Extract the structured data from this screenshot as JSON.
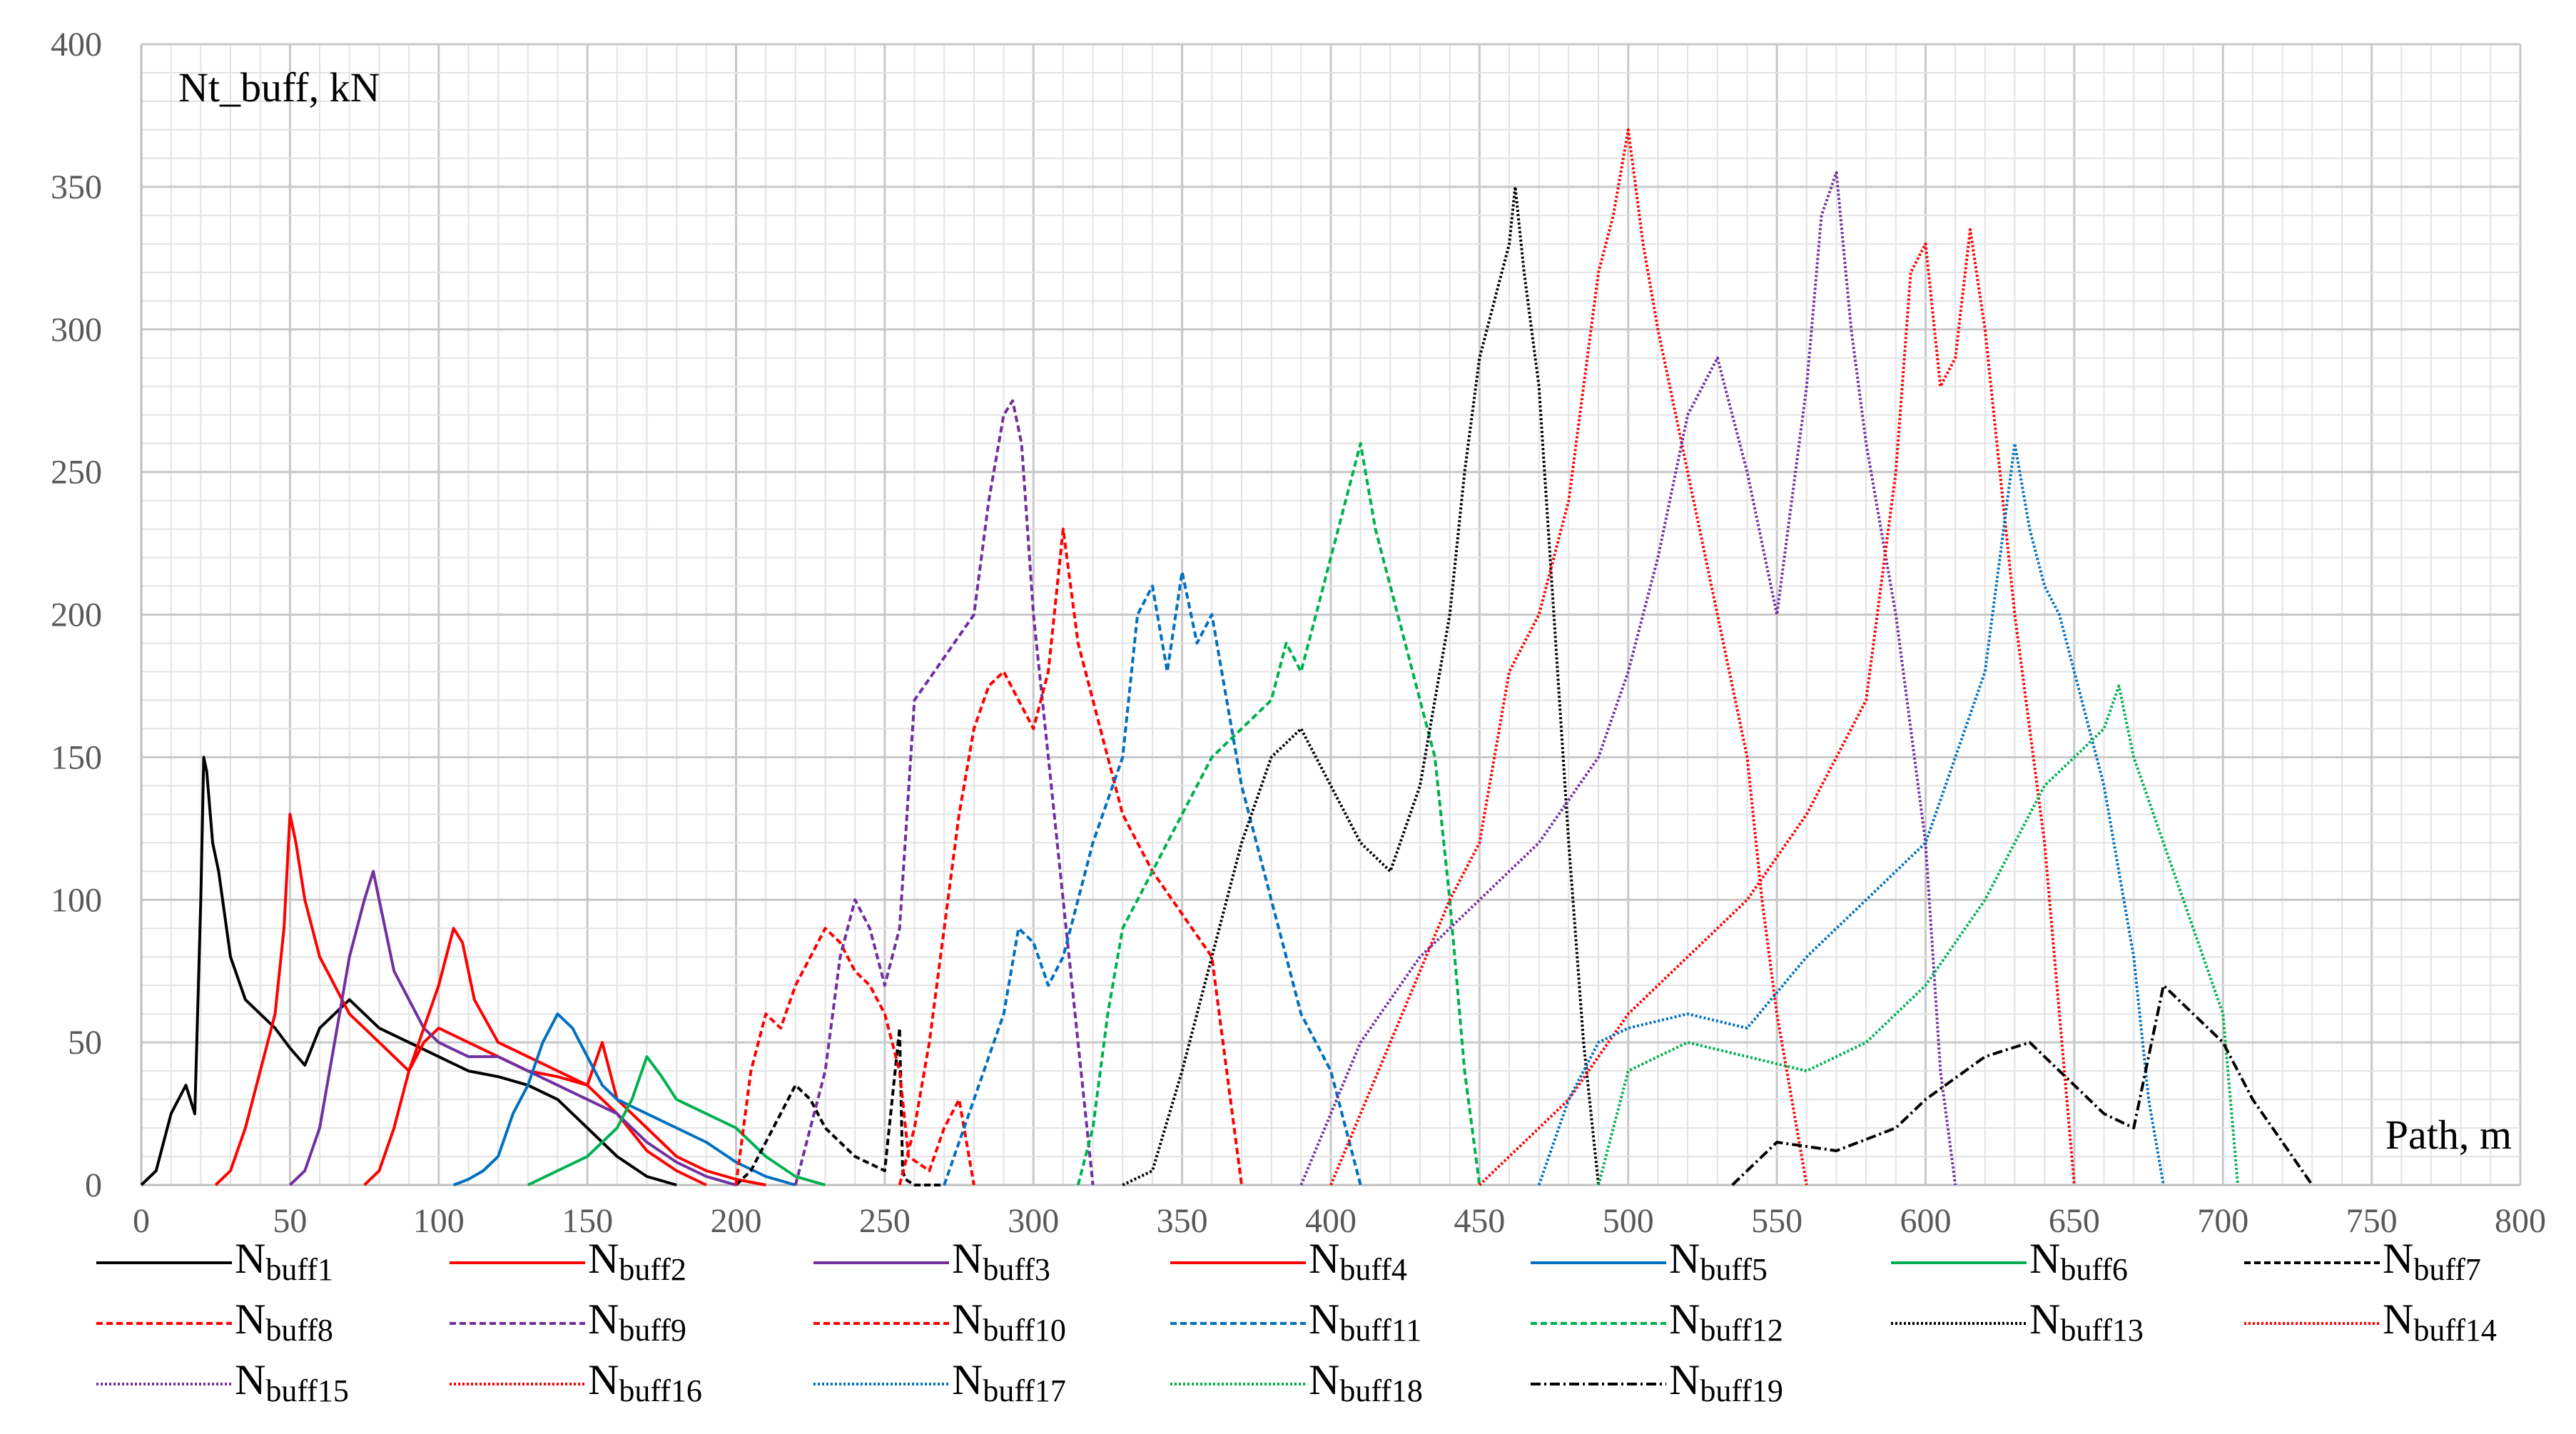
{
  "chart_data": {
    "type": "line",
    "ylabel": "Nt_buff, kN",
    "xlabel": "Path, m",
    "xlim": [
      0,
      800
    ],
    "ylim": [
      0,
      400
    ],
    "x_ticks": [
      0,
      50,
      100,
      150,
      200,
      250,
      300,
      350,
      400,
      450,
      500,
      550,
      600,
      650,
      700,
      750,
      800
    ],
    "y_ticks": [
      0,
      50,
      100,
      150,
      200,
      250,
      300,
      350,
      400
    ],
    "grid": true,
    "legend_position": "bottom",
    "series": [
      {
        "name": "Nbuff1",
        "base": "N",
        "sub": "buff1",
        "color": "#000000",
        "dash": "solid",
        "x": [
          0,
          5,
          10,
          15,
          18,
          20,
          21,
          22,
          24,
          26,
          28,
          30,
          35,
          40,
          45,
          50,
          55,
          60,
          70,
          80,
          90,
          100,
          110,
          120,
          130,
          140,
          150,
          160,
          170,
          180
        ],
        "y": [
          0,
          5,
          25,
          35,
          25,
          100,
          150,
          145,
          120,
          110,
          95,
          80,
          65,
          60,
          55,
          48,
          42,
          55,
          65,
          55,
          50,
          45,
          40,
          38,
          35,
          30,
          20,
          10,
          3,
          0
        ]
      },
      {
        "name": "Nbuff2",
        "base": "N",
        "sub": "buff2",
        "color": "#FF0000",
        "dash": "solid",
        "x": [
          25,
          30,
          35,
          40,
          45,
          48,
          50,
          52,
          55,
          60,
          65,
          70,
          75,
          80,
          85,
          90,
          95,
          100,
          110,
          120,
          130,
          140,
          150,
          160,
          170,
          180,
          190
        ],
        "y": [
          0,
          5,
          20,
          40,
          60,
          90,
          130,
          120,
          100,
          80,
          70,
          60,
          55,
          50,
          45,
          40,
          50,
          55,
          50,
          45,
          40,
          38,
          35,
          25,
          12,
          5,
          0
        ]
      },
      {
        "name": "Nbuff3",
        "base": "N",
        "sub": "buff3",
        "color": "#7030A0",
        "dash": "solid",
        "x": [
          50,
          55,
          60,
          65,
          70,
          75,
          78,
          80,
          85,
          90,
          95,
          100,
          110,
          120,
          130,
          140,
          150,
          160,
          170,
          180,
          190,
          200
        ],
        "y": [
          0,
          5,
          20,
          50,
          80,
          100,
          110,
          100,
          75,
          65,
          55,
          50,
          45,
          45,
          40,
          35,
          30,
          25,
          15,
          8,
          3,
          0
        ]
      },
      {
        "name": "Nbuff4",
        "base": "N",
        "sub": "buff4",
        "color": "#FF0000",
        "dash": "solid",
        "x": [
          75,
          80,
          85,
          90,
          95,
          100,
          105,
          108,
          112,
          120,
          130,
          140,
          150,
          155,
          160,
          170,
          180,
          190,
          200,
          210
        ],
        "y": [
          0,
          5,
          20,
          40,
          55,
          70,
          90,
          85,
          65,
          50,
          45,
          40,
          35,
          50,
          30,
          20,
          10,
          5,
          2,
          0
        ]
      },
      {
        "name": "Nbuff5",
        "base": "N",
        "sub": "buff5",
        "color": "#0070C0",
        "dash": "solid",
        "x": [
          105,
          110,
          115,
          120,
          125,
          130,
          135,
          140,
          145,
          150,
          155,
          160,
          170,
          180,
          190,
          200,
          210,
          220
        ],
        "y": [
          0,
          2,
          5,
          10,
          25,
          35,
          50,
          60,
          55,
          45,
          35,
          30,
          25,
          20,
          15,
          8,
          3,
          0
        ]
      },
      {
        "name": "Nbuff6",
        "base": "N",
        "sub": "buff6",
        "color": "#00B050",
        "dash": "solid",
        "x": [
          130,
          140,
          150,
          160,
          165,
          170,
          175,
          180,
          190,
          200,
          210,
          220,
          230
        ],
        "y": [
          0,
          5,
          10,
          20,
          30,
          45,
          38,
          30,
          25,
          20,
          10,
          3,
          0
        ]
      },
      {
        "name": "Nbuff7",
        "base": "N",
        "sub": "buff7",
        "color": "#000000",
        "dash": "9,5",
        "x": [
          200,
          205,
          210,
          215,
          220,
          225,
          230,
          240,
          250,
          255,
          256,
          257,
          260,
          270
        ],
        "y": [
          0,
          5,
          15,
          25,
          35,
          30,
          20,
          10,
          5,
          55,
          5,
          2,
          0,
          0
        ]
      },
      {
        "name": "Nbuff8",
        "base": "N",
        "sub": "buff8",
        "color": "#FF0000",
        "dash": "9,5",
        "x": [
          200,
          205,
          210,
          215,
          220,
          225,
          230,
          235,
          240,
          245,
          250,
          255,
          258,
          265,
          270,
          275,
          280
        ],
        "y": [
          0,
          40,
          60,
          55,
          70,
          80,
          90,
          85,
          75,
          70,
          60,
          40,
          10,
          5,
          20,
          30,
          0
        ]
      },
      {
        "name": "Nbuff9",
        "base": "N",
        "sub": "buff9",
        "color": "#7030A0",
        "dash": "9,5",
        "x": [
          220,
          230,
          235,
          240,
          245,
          250,
          255,
          260,
          270,
          280,
          285,
          290,
          293,
          296,
          300,
          310,
          320
        ],
        "y": [
          0,
          40,
          80,
          100,
          90,
          70,
          90,
          170,
          185,
          200,
          240,
          270,
          275,
          260,
          200,
          100,
          0
        ]
      },
      {
        "name": "Nbuff10",
        "base": "N",
        "sub": "buff10",
        "color": "#FF0000",
        "dash": "9,5",
        "x": [
          255,
          260,
          265,
          270,
          275,
          280,
          285,
          290,
          295,
          300,
          305,
          310,
          315,
          320,
          325,
          330,
          340,
          350,
          360,
          365,
          370
        ],
        "y": [
          0,
          20,
          50,
          90,
          130,
          160,
          175,
          180,
          170,
          160,
          180,
          230,
          190,
          170,
          150,
          130,
          110,
          95,
          80,
          40,
          0
        ]
      },
      {
        "name": "Nbuff11",
        "base": "N",
        "sub": "buff11",
        "color": "#0070C0",
        "dash": "9,5",
        "x": [
          270,
          280,
          290,
          295,
          300,
          305,
          310,
          320,
          330,
          335,
          340,
          345,
          350,
          355,
          360,
          365,
          370,
          375,
          380,
          385,
          390,
          395,
          400,
          405,
          410
        ],
        "y": [
          0,
          30,
          60,
          90,
          85,
          70,
          80,
          120,
          150,
          200,
          210,
          180,
          215,
          190,
          200,
          170,
          140,
          120,
          100,
          80,
          60,
          50,
          40,
          20,
          0
        ]
      },
      {
        "name": "Nbuff12",
        "base": "N",
        "sub": "buff12",
        "color": "#00B050",
        "dash": "9,5",
        "x": [
          315,
          320,
          325,
          330,
          340,
          350,
          360,
          370,
          380,
          385,
          390,
          395,
          400,
          405,
          410,
          415,
          420,
          425,
          430,
          435,
          440,
          445,
          450
        ],
        "y": [
          0,
          20,
          60,
          90,
          110,
          130,
          150,
          160,
          170,
          190,
          180,
          200,
          220,
          240,
          260,
          230,
          210,
          190,
          170,
          150,
          100,
          40,
          0
        ]
      },
      {
        "name": "Nbuff13",
        "base": "N",
        "sub": "buff13",
        "color": "#000000",
        "dash": "3,3",
        "x": [
          330,
          340,
          350,
          360,
          370,
          380,
          390,
          400,
          410,
          420,
          430,
          440,
          445,
          450,
          455,
          460,
          462,
          465,
          470,
          475,
          480,
          485,
          490
        ],
        "y": [
          0,
          5,
          40,
          80,
          120,
          150,
          160,
          140,
          120,
          110,
          140,
          200,
          250,
          290,
          310,
          330,
          350,
          320,
          280,
          200,
          120,
          50,
          0
        ]
      },
      {
        "name": "Nbuff14",
        "base": "N",
        "sub": "buff14",
        "color": "#FF0000",
        "dash": "3,3",
        "x": [
          400,
          420,
          440,
          450,
          460,
          470,
          480,
          485,
          490,
          495,
          500,
          505,
          510,
          520,
          530,
          540,
          545,
          550,
          555,
          560
        ],
        "y": [
          0,
          50,
          100,
          120,
          180,
          200,
          240,
          280,
          320,
          340,
          370,
          330,
          300,
          250,
          200,
          150,
          100,
          60,
          30,
          0
        ]
      },
      {
        "name": "Nbuff15",
        "base": "N",
        "sub": "buff15",
        "color": "#7030A0",
        "dash": "3,3",
        "x": [
          390,
          410,
          430,
          450,
          470,
          490,
          500,
          510,
          520,
          530,
          540,
          550,
          560,
          565,
          570,
          575,
          580,
          590,
          600,
          605,
          610
        ],
        "y": [
          0,
          50,
          80,
          100,
          120,
          150,
          180,
          220,
          270,
          290,
          250,
          200,
          280,
          340,
          355,
          300,
          260,
          200,
          120,
          40,
          0
        ]
      },
      {
        "name": "Nbuff16",
        "base": "N",
        "sub": "buff16",
        "color": "#FF0000",
        "dash": "3,3",
        "x": [
          450,
          480,
          500,
          520,
          540,
          560,
          570,
          580,
          590,
          595,
          600,
          605,
          610,
          615,
          620,
          625,
          630,
          640,
          650
        ],
        "y": [
          0,
          30,
          60,
          80,
          100,
          130,
          150,
          170,
          250,
          320,
          330,
          280,
          290,
          335,
          300,
          250,
          200,
          120,
          0
        ]
      },
      {
        "name": "Nbuff17",
        "base": "N",
        "sub": "buff17",
        "color": "#0070C0",
        "dash": "3,3",
        "x": [
          470,
          480,
          490,
          500,
          520,
          540,
          560,
          580,
          600,
          610,
          620,
          625,
          630,
          635,
          640,
          645,
          650,
          660,
          670,
          675,
          680
        ],
        "y": [
          0,
          30,
          50,
          55,
          60,
          55,
          80,
          100,
          120,
          150,
          180,
          220,
          260,
          230,
          210,
          200,
          180,
          140,
          80,
          30,
          0
        ]
      },
      {
        "name": "Nbuff18",
        "base": "N",
        "sub": "buff18",
        "color": "#00B050",
        "dash": "3,3",
        "x": [
          490,
          500,
          520,
          540,
          560,
          580,
          600,
          620,
          640,
          650,
          660,
          665,
          670,
          680,
          690,
          700,
          705
        ],
        "y": [
          0,
          40,
          50,
          45,
          40,
          50,
          70,
          100,
          140,
          150,
          160,
          175,
          150,
          120,
          90,
          60,
          0
        ]
      },
      {
        "name": "Nbuff19",
        "base": "N",
        "sub": "buff19",
        "color": "#000000",
        "dash": "14,5,3,5",
        "x": [
          535,
          550,
          570,
          590,
          600,
          620,
          635,
          650,
          660,
          670,
          680,
          690,
          700,
          710,
          720,
          730
        ],
        "y": [
          0,
          15,
          12,
          20,
          30,
          45,
          50,
          35,
          25,
          20,
          70,
          60,
          50,
          30,
          15,
          0
        ]
      }
    ]
  }
}
